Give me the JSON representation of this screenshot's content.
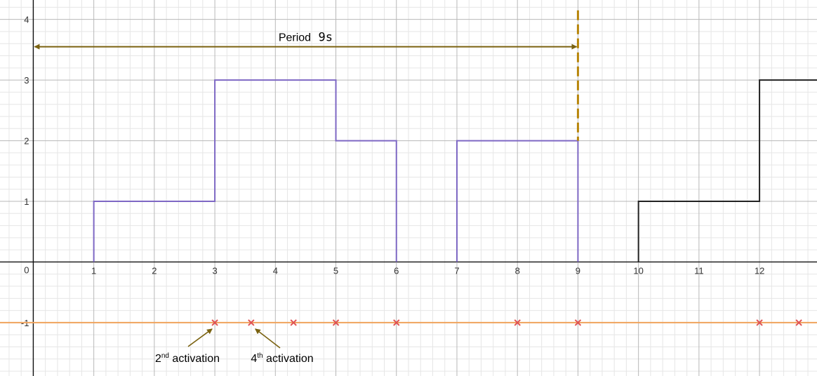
{
  "chart_data": {
    "type": "line",
    "xlim": [
      -0.55,
      12.95
    ],
    "ylim": [
      -1.88,
      4.32
    ],
    "grid": true,
    "minor_grid_divisions": 5,
    "x_ticks": [
      "1",
      "2",
      "3",
      "4",
      "5",
      "6",
      "7",
      "8",
      "9",
      "10",
      "11",
      "12"
    ],
    "y_ticks": [
      "-1",
      "1",
      "2",
      "3",
      "4"
    ],
    "origin_label": "0",
    "series": [
      {
        "color": "#7e68c4",
        "style": "step",
        "segments": [
          [
            [
              1,
              0
            ],
            [
              1,
              1
            ],
            [
              3,
              1
            ],
            [
              3,
              3
            ],
            [
              5,
              3
            ],
            [
              5,
              2
            ],
            [
              6,
              2
            ],
            [
              6,
              0
            ]
          ],
          [
            [
              7,
              0
            ],
            [
              7,
              2
            ],
            [
              9,
              2
            ],
            [
              9,
              0
            ]
          ]
        ]
      },
      {
        "color": "#222222",
        "style": "step",
        "segments": [
          [
            [
              10,
              0
            ],
            [
              10,
              1
            ],
            [
              12,
              1
            ],
            [
              12,
              3
            ],
            [
              12.95,
              3
            ]
          ]
        ]
      },
      {
        "color": "#f0a35c",
        "style": "hline",
        "y": -1
      },
      {
        "color": "#e05252",
        "style": "markers",
        "marker": "x",
        "y": -1,
        "x": [
          3,
          3.6,
          4.3,
          5,
          6,
          8,
          9,
          12,
          12.65
        ]
      }
    ],
    "period_marker": {
      "x": 9,
      "color": "#b8860b",
      "style": "dashed",
      "y_range": [
        2,
        4.15
      ]
    },
    "annotations": {
      "period": {
        "label": "Period",
        "value": "9s",
        "from_x": 0,
        "to_x": 9,
        "y": 3.55,
        "color": "#7a6210"
      },
      "activation_2": {
        "ordinal": "2",
        "suffix": "nd",
        "text": " activation",
        "points_to": [
          3,
          -1
        ],
        "color": "#7a6210"
      },
      "activation_4": {
        "ordinal": "4",
        "suffix": "th",
        "text": " activation",
        "points_to": [
          3.6,
          -1
        ],
        "color": "#7a6210"
      }
    }
  }
}
